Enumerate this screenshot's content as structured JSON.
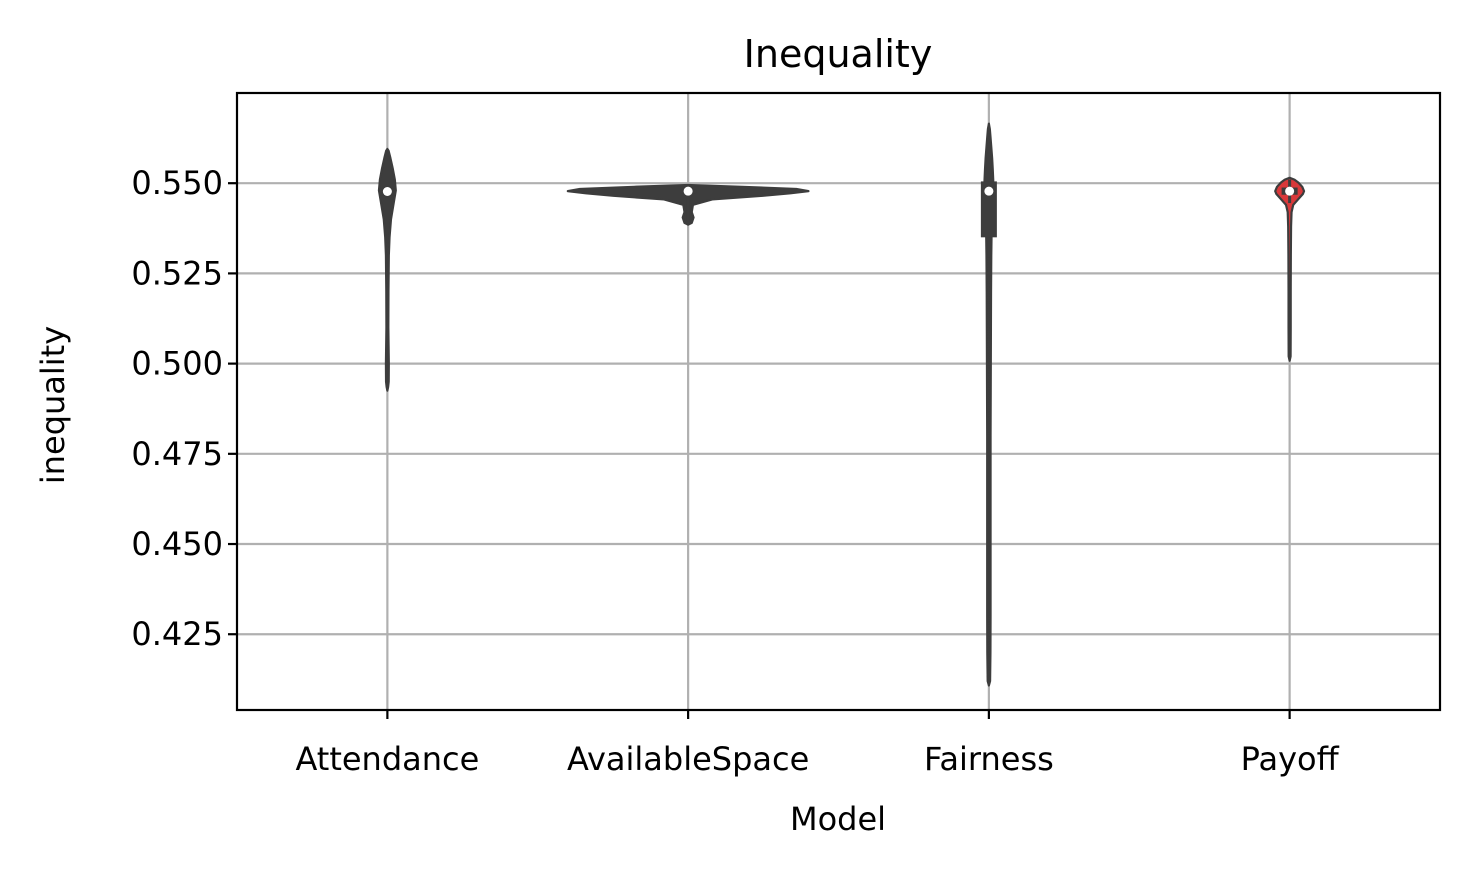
{
  "chart_data": {
    "type": "violin",
    "title": "Inequality",
    "xlabel": "Model",
    "ylabel": "inequality",
    "categories": [
      "Attendance",
      "AvailableSpace",
      "Fairness",
      "Payoff"
    ],
    "ylim": [
      0.404,
      0.575
    ],
    "yticks": [
      0.425,
      0.45,
      0.475,
      0.5,
      0.525,
      0.55
    ],
    "ytick_labels": [
      "0.425",
      "0.450",
      "0.475",
      "0.500",
      "0.525",
      "0.550"
    ],
    "grid": true,
    "colors": {
      "violin_edge": "#3d3d3d",
      "violin_fill": "#3d3d3d",
      "payoff_fill": "#d9383a",
      "grid": "#b0b0b0",
      "median_dot": "#ffffff"
    },
    "violins": [
      {
        "category": "Attendance",
        "min": 0.4925,
        "max": 0.5595,
        "q1": 0.5465,
        "q3": 0.5485,
        "median": 0.5477,
        "whisker_low": 0.546,
        "whisker_high": 0.549,
        "fill": "#3d3d3d",
        "density": [
          [
            0.4925,
            0
          ],
          [
            0.4935,
            0.006
          ],
          [
            0.495,
            0.011
          ],
          [
            0.5,
            0.012
          ],
          [
            0.505,
            0.01
          ],
          [
            0.51,
            0.008
          ],
          [
            0.52,
            0.009
          ],
          [
            0.53,
            0.012
          ],
          [
            0.535,
            0.018
          ],
          [
            0.54,
            0.03
          ],
          [
            0.545,
            0.055
          ],
          [
            0.548,
            0.07
          ],
          [
            0.551,
            0.062
          ],
          [
            0.554,
            0.045
          ],
          [
            0.557,
            0.025
          ],
          [
            0.559,
            0.01
          ],
          [
            0.5595,
            0
          ]
        ]
      },
      {
        "category": "AvailableSpace",
        "min": 0.5385,
        "max": 0.5495,
        "q1": 0.5472,
        "q3": 0.5482,
        "median": 0.5478,
        "whisker_low": 0.5395,
        "whisker_high": 0.549,
        "fill": "#3d3d3d",
        "density": [
          [
            0.5385,
            0
          ],
          [
            0.539,
            0.03
          ],
          [
            0.5405,
            0.045
          ],
          [
            0.542,
            0.03
          ],
          [
            0.544,
            0.04
          ],
          [
            0.5455,
            0.2
          ],
          [
            0.5465,
            0.62
          ],
          [
            0.5472,
            0.85
          ],
          [
            0.5478,
            1.0
          ],
          [
            0.5484,
            0.9
          ],
          [
            0.549,
            0.45
          ],
          [
            0.5495,
            0
          ]
        ]
      },
      {
        "category": "Fairness",
        "min": 0.4108,
        "max": 0.5665,
        "q1": 0.535,
        "q3": 0.5505,
        "median": 0.5478,
        "whisker_low": 0.5295,
        "whisker_high": 0.5505,
        "fill": "#3d3d3d",
        "density": [
          [
            0.4108,
            0
          ],
          [
            0.412,
            0.01
          ],
          [
            0.42,
            0.013
          ],
          [
            0.43,
            0.014
          ],
          [
            0.44,
            0.014
          ],
          [
            0.45,
            0.014
          ],
          [
            0.46,
            0.014
          ],
          [
            0.47,
            0.014
          ],
          [
            0.48,
            0.014
          ],
          [
            0.49,
            0.015
          ],
          [
            0.5,
            0.016
          ],
          [
            0.51,
            0.017
          ],
          [
            0.52,
            0.018
          ],
          [
            0.53,
            0.02
          ],
          [
            0.535,
            0.022
          ],
          [
            0.54,
            0.027
          ],
          [
            0.545,
            0.033
          ],
          [
            0.548,
            0.038
          ],
          [
            0.551,
            0.036
          ],
          [
            0.554,
            0.032
          ],
          [
            0.557,
            0.027
          ],
          [
            0.56,
            0.02
          ],
          [
            0.563,
            0.013
          ],
          [
            0.565,
            0.008
          ],
          [
            0.5665,
            0
          ]
        ]
      },
      {
        "category": "Payoff",
        "min": 0.5008,
        "max": 0.5515,
        "q1": 0.5468,
        "q3": 0.5488,
        "median": 0.5478,
        "whisker_low": 0.5445,
        "whisker_high": 0.551,
        "fill": "#d9383a",
        "density": [
          [
            0.5008,
            0
          ],
          [
            0.502,
            0.008
          ],
          [
            0.51,
            0.009
          ],
          [
            0.52,
            0.009
          ],
          [
            0.53,
            0.01
          ],
          [
            0.538,
            0.012
          ],
          [
            0.542,
            0.016
          ],
          [
            0.544,
            0.03
          ],
          [
            0.5455,
            0.07
          ],
          [
            0.547,
            0.11
          ],
          [
            0.5478,
            0.12
          ],
          [
            0.549,
            0.105
          ],
          [
            0.5502,
            0.072
          ],
          [
            0.551,
            0.04
          ],
          [
            0.5515,
            0
          ]
        ]
      }
    ]
  }
}
